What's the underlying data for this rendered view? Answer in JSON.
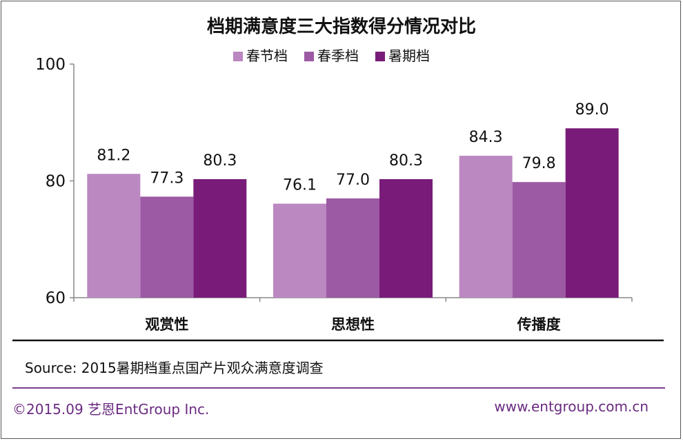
{
  "chart_data": {
    "type": "bar",
    "title": "档期满意度三大指数得分情况对比",
    "categories": [
      "观赏性",
      "思想性",
      "传播度"
    ],
    "series": [
      {
        "name": "春节档",
        "values": [
          81.2,
          76.1,
          84.3
        ],
        "color": "#bb88c1"
      },
      {
        "name": "春季档",
        "values": [
          77.3,
          77.0,
          79.8
        ],
        "color": "#9c5aa4"
      },
      {
        "name": "暑期档",
        "values": [
          80.3,
          80.3,
          89.0
        ],
        "color": "#791c79"
      }
    ],
    "yticks": [
      "60",
      "80",
      "100"
    ],
    "ylim": [
      60,
      100
    ],
    "grid": false,
    "legend": "top-center",
    "value_labels": true
  },
  "source_text": "Source: 2015暑期档重点国产片观众满意度调查",
  "footer": {
    "copyright": "©2015.09  艺恩EntGroup Inc.",
    "website": "www.entgroup.com.cn"
  }
}
